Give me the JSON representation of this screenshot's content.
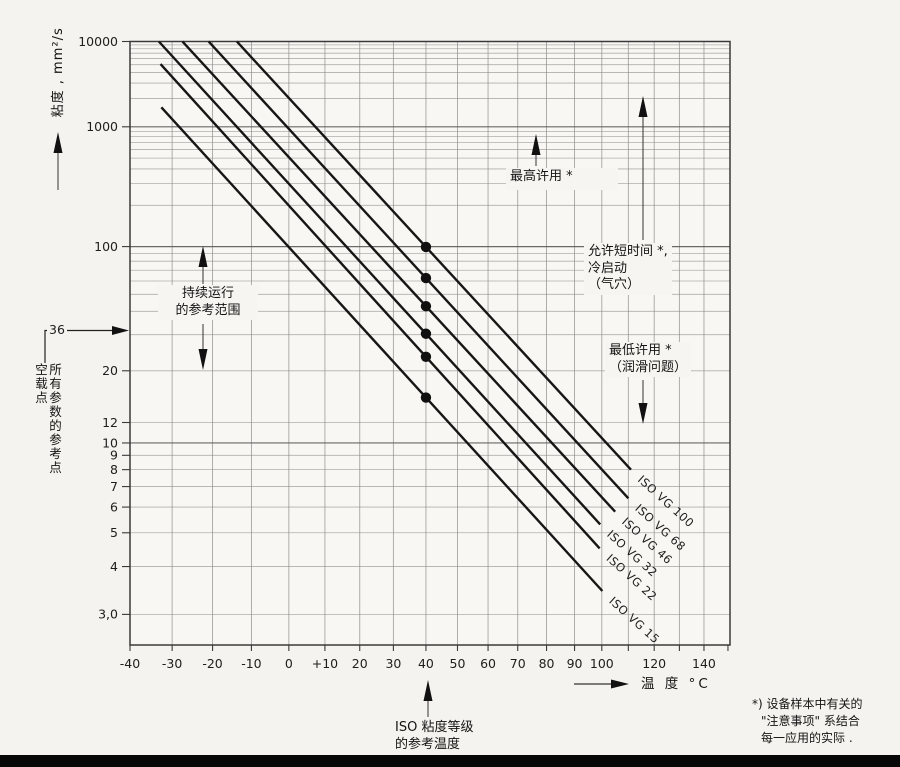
{
  "colors": {
    "paper": "#f4f3ef",
    "plot_background": "#f8f7f3",
    "series_line": "#161616",
    "grid_minor": "#8a8a8a",
    "grid_major": "#5a5a5a",
    "frame": "#3a3a3a",
    "text": "#1e1e1e",
    "bottom_bar": "#070707"
  },
  "chart_data": {
    "type": "line",
    "title": "",
    "description": "Viscosity-temperature diagram for ISO VG oil grades (Ubbelohde-Walther axes)",
    "x_axis": {
      "label": "温 度 °C",
      "unit": "°C",
      "scale": "log(T+273.15)",
      "range": [
        -40,
        150
      ],
      "ticks": [
        {
          "t": -40,
          "label": "-40"
        },
        {
          "t": -30,
          "label": "-30"
        },
        {
          "t": -20,
          "label": "-20"
        },
        {
          "t": -10,
          "label": "-10"
        },
        {
          "t": 0,
          "label": "0"
        },
        {
          "t": 10,
          "label": "+10"
        },
        {
          "t": 20,
          "label": "20"
        },
        {
          "t": 30,
          "label": "30"
        },
        {
          "t": 40,
          "label": "40"
        },
        {
          "t": 50,
          "label": "50"
        },
        {
          "t": 60,
          "label": "60"
        },
        {
          "t": 70,
          "label": "70"
        },
        {
          "t": 80,
          "label": "80"
        },
        {
          "t": 90,
          "label": "90"
        },
        {
          "t": 100,
          "label": "100"
        },
        {
          "t": 110,
          "label": ""
        },
        {
          "t": 120,
          "label": "120"
        },
        {
          "t": 130,
          "label": ""
        },
        {
          "t": 140,
          "label": "140"
        },
        {
          "t": 150,
          "label": ""
        }
      ]
    },
    "y_axis": {
      "label": "粘度 , mm²/s",
      "unit": "mm²/s",
      "scale": "loglog(v+0.8) (Ubbelohde-Walther)",
      "range": [
        2.5,
        10000
      ],
      "ticks": [
        {
          "v": 10000,
          "label": "10000"
        },
        {
          "v": 1000,
          "label": "1000"
        },
        {
          "v": 100,
          "label": "100"
        },
        {
          "v": 20,
          "label": "20"
        },
        {
          "v": 12,
          "label": "12"
        },
        {
          "v": 10,
          "label": "10"
        },
        {
          "v": 9,
          "label": "9"
        },
        {
          "v": 8,
          "label": "8"
        },
        {
          "v": 7,
          "label": "7"
        },
        {
          "v": 6,
          "label": "6"
        },
        {
          "v": 5,
          "label": "5"
        },
        {
          "v": 4,
          "label": "4"
        },
        {
          "v": 3,
          "label": "3,0"
        }
      ],
      "special_marker": {
        "value": 36,
        "label": "36"
      }
    },
    "reference_temperature": 40,
    "series": [
      {
        "name": "ISO VG 100",
        "vg": 100,
        "start": [
          -13.8,
          10000
        ],
        "end": [
          111.0,
          8.0
        ],
        "ref_point": [
          40,
          100
        ]
      },
      {
        "name": "ISO VG 68",
        "vg": 68,
        "start": [
          -21.0,
          10000
        ],
        "end": [
          110.0,
          6.4
        ],
        "ref_point": [
          40,
          68
        ]
      },
      {
        "name": "ISO VG 46",
        "vg": 46,
        "start": [
          -27.5,
          10000
        ],
        "end": [
          105.0,
          5.8
        ],
        "ref_point": [
          40,
          46
        ]
      },
      {
        "name": "ISO VG 32",
        "vg": 32,
        "start": [
          -33.2,
          10000
        ],
        "end": [
          99.4,
          5.3
        ],
        "ref_point": [
          40,
          32
        ]
      },
      {
        "name": "ISO VG 22",
        "vg": 22,
        "start": [
          -32.8,
          5100
        ],
        "end": [
          99.2,
          4.5
        ],
        "ref_point": [
          40,
          22
        ]
      },
      {
        "name": "ISO VG 15",
        "vg": 15,
        "start": [
          -32.6,
          1600
        ],
        "end": [
          100.2,
          3.44
        ],
        "ref_point": [
          40,
          15
        ]
      }
    ]
  },
  "annotations": {
    "y_axis_label": "粘度 , mm²/s",
    "x_axis_label": "温 度 °C",
    "max_allowed": {
      "text": "最高许用 *"
    },
    "short_time": {
      "line1": "允许短时间 *,",
      "line2": "冷启动",
      "line3": "（气穴）"
    },
    "continuous": {
      "line1": "持续运行",
      "line2": "的参考范围"
    },
    "min_allowed": {
      "line1": "最低许用 *",
      "line2": "（润滑问题）"
    },
    "iso_ref_temp": {
      "line1": "ISO 粘度等级",
      "line2": "的参考温度"
    },
    "no_load": {
      "value": "36",
      "line1": "空载点",
      "line2": "所有参数的参考点"
    },
    "footnote": {
      "line1": "*) 设备样本中有关的",
      "line2": "\"注意事项\" 系结合",
      "line3": "每一应用的实际 ."
    }
  }
}
